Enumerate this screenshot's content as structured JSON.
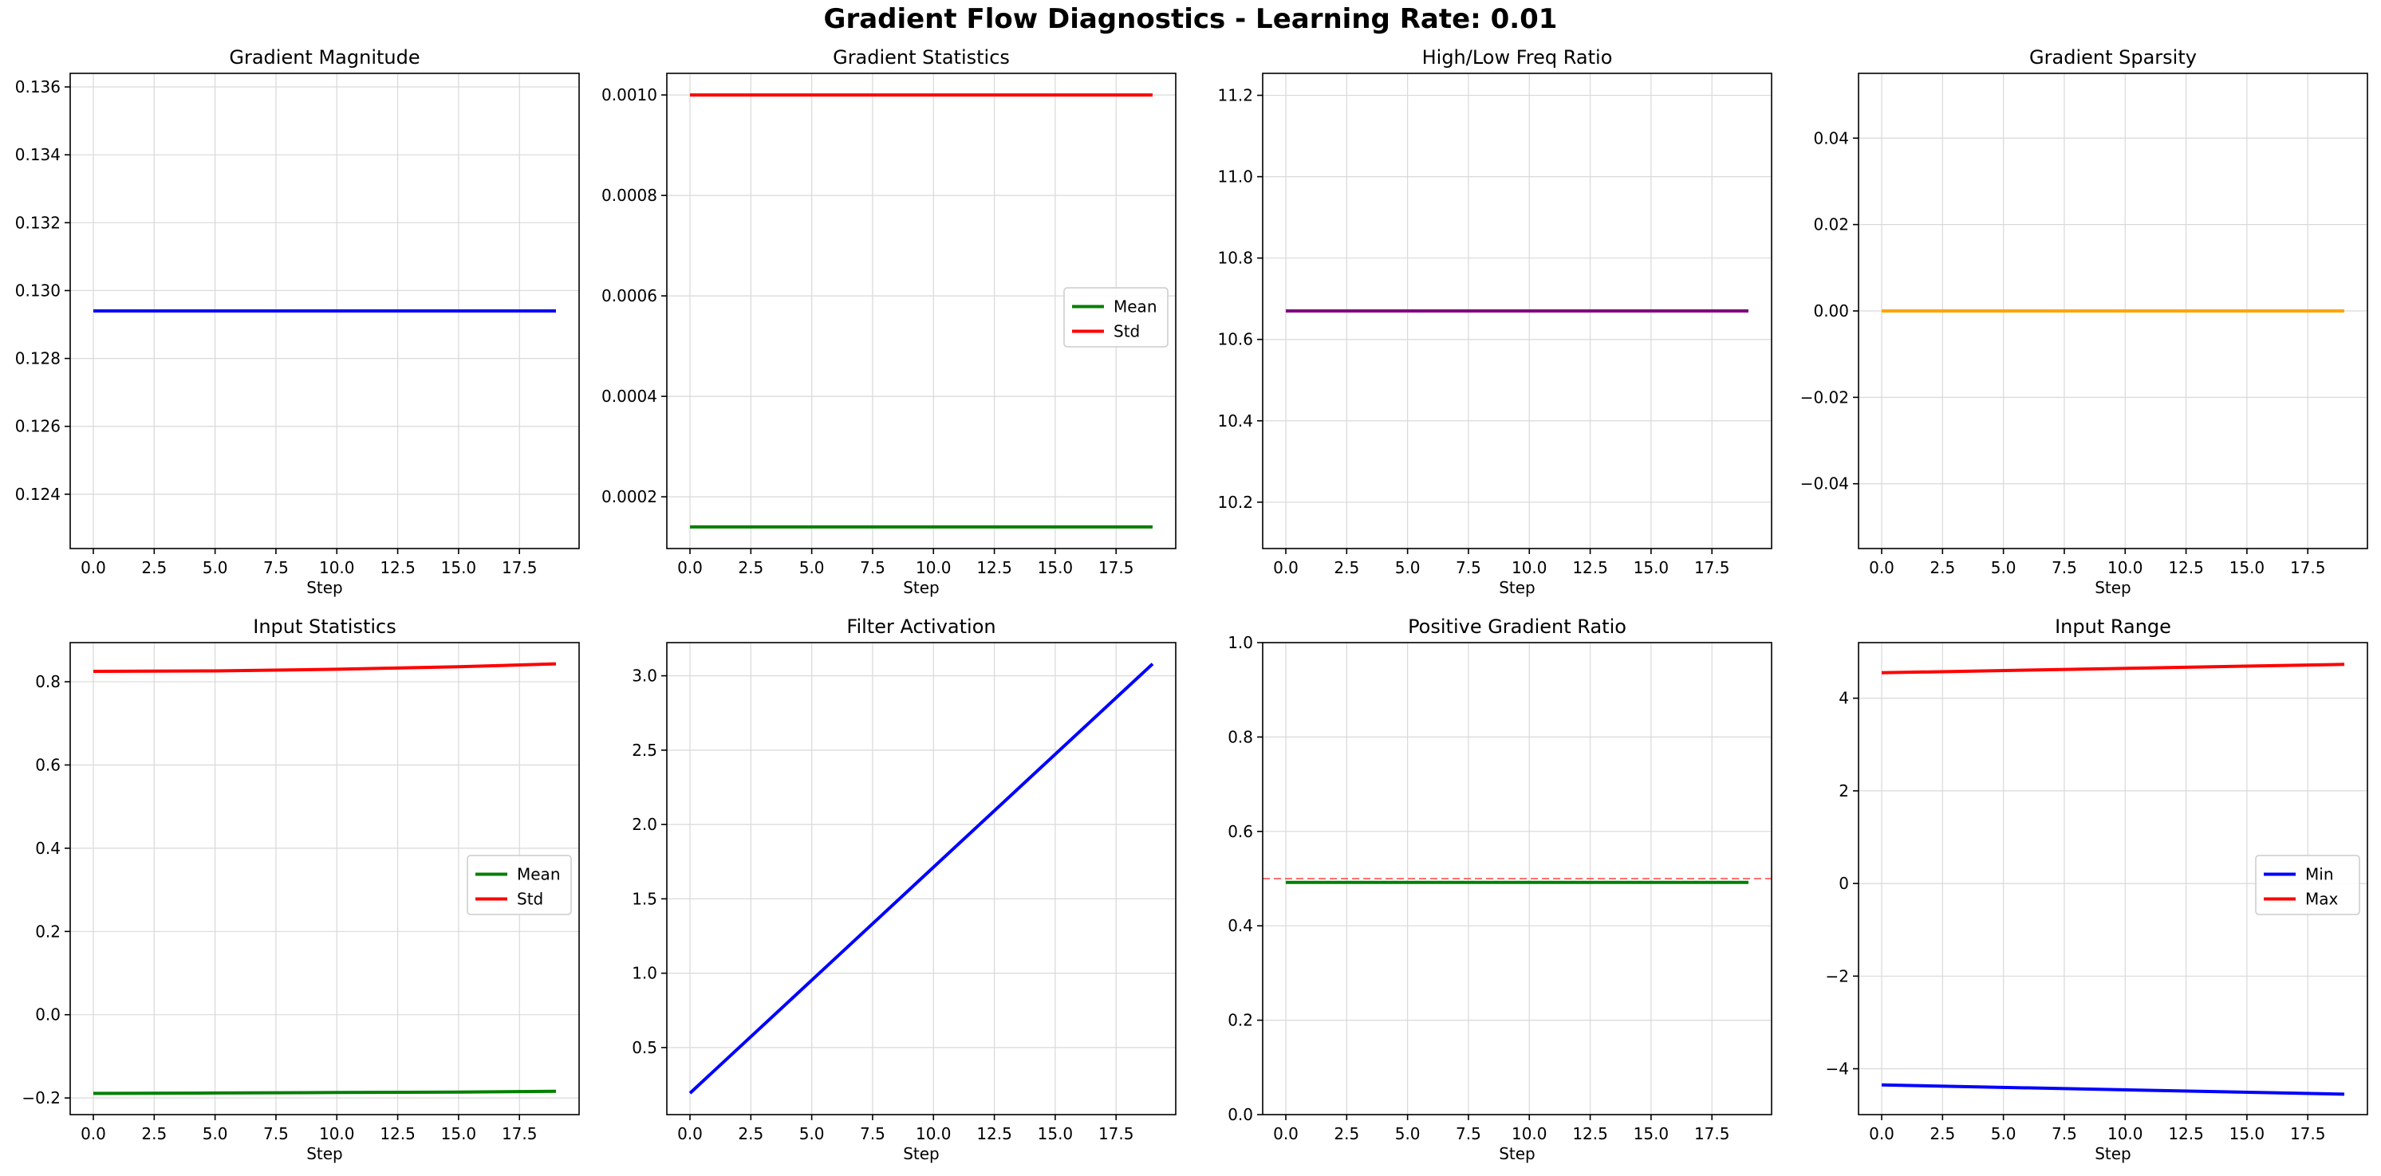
{
  "suptitle": "Gradient Flow Diagnostics - Learning Rate: 0.01",
  "chart_data": [
    {
      "type": "line",
      "title": "Gradient Magnitude",
      "xlabel": "Step",
      "ylabel": "",
      "xlim": [
        -0.95,
        19.95
      ],
      "ylim": [
        0.1224,
        0.1364
      ],
      "xticks": [
        0.0,
        2.5,
        5.0,
        7.5,
        10.0,
        12.5,
        15.0,
        17.5
      ],
      "xtick_labels": [
        "0.0",
        "2.5",
        "5.0",
        "7.5",
        "10.0",
        "12.5",
        "15.0",
        "17.5"
      ],
      "yticks": [
        0.124,
        0.126,
        0.128,
        0.13,
        0.132,
        0.134,
        0.136
      ],
      "ytick_labels": [
        "0.124",
        "0.126",
        "0.128",
        "0.130",
        "0.132",
        "0.134",
        "0.136"
      ],
      "grid": true,
      "legend": null,
      "series": [
        {
          "color": "#0000ff",
          "x": [
            0,
            19
          ],
          "y": [
            0.1294,
            0.1294
          ]
        }
      ]
    },
    {
      "type": "line",
      "title": "Gradient Statistics",
      "xlabel": "Step",
      "ylabel": "",
      "xlim": [
        -0.95,
        19.95
      ],
      "ylim": [
        9.7e-05,
        0.001043
      ],
      "xticks": [
        0.0,
        2.5,
        5.0,
        7.5,
        10.0,
        12.5,
        15.0,
        17.5
      ],
      "xtick_labels": [
        "0.0",
        "2.5",
        "5.0",
        "7.5",
        "10.0",
        "12.5",
        "15.0",
        "17.5"
      ],
      "yticks": [
        0.0002,
        0.0004,
        0.0006,
        0.0008,
        0.001
      ],
      "ytick_labels": [
        "0.0002",
        "0.0004",
        "0.0006",
        "0.0008",
        "0.0010"
      ],
      "grid": true,
      "legend": "center-right",
      "series": [
        {
          "name": "Mean",
          "color": "#008000",
          "x": [
            0,
            19
          ],
          "y": [
            0.00014,
            0.00014
          ]
        },
        {
          "name": "Std",
          "color": "#ff0000",
          "x": [
            0,
            19
          ],
          "y": [
            0.001,
            0.001
          ]
        }
      ]
    },
    {
      "type": "line",
      "title": "High/Low Freq Ratio",
      "xlabel": "Step",
      "ylabel": "",
      "xlim": [
        -0.95,
        19.95
      ],
      "ylim": [
        10.086,
        11.254
      ],
      "xticks": [
        0.0,
        2.5,
        5.0,
        7.5,
        10.0,
        12.5,
        15.0,
        17.5
      ],
      "xtick_labels": [
        "0.0",
        "2.5",
        "5.0",
        "7.5",
        "10.0",
        "12.5",
        "15.0",
        "17.5"
      ],
      "yticks": [
        10.2,
        10.4,
        10.6,
        10.8,
        11.0,
        11.2
      ],
      "ytick_labels": [
        "10.2",
        "10.4",
        "10.6",
        "10.8",
        "11.0",
        "11.2"
      ],
      "grid": true,
      "legend": null,
      "series": [
        {
          "color": "#800080",
          "x": [
            0,
            19
          ],
          "y": [
            10.67,
            10.67
          ]
        }
      ]
    },
    {
      "type": "line",
      "title": "Gradient Sparsity",
      "xlabel": "Step",
      "ylabel": "",
      "xlim": [
        -0.95,
        19.95
      ],
      "ylim": [
        -0.055,
        0.055
      ],
      "xticks": [
        0.0,
        2.5,
        5.0,
        7.5,
        10.0,
        12.5,
        15.0,
        17.5
      ],
      "xtick_labels": [
        "0.0",
        "2.5",
        "5.0",
        "7.5",
        "10.0",
        "12.5",
        "15.0",
        "17.5"
      ],
      "yticks": [
        -0.04,
        -0.02,
        0.0,
        0.02,
        0.04
      ],
      "ytick_labels": [
        "−0.04",
        "−0.02",
        "0.00",
        "0.02",
        "0.04"
      ],
      "grid": true,
      "legend": null,
      "series": [
        {
          "color": "#ffa500",
          "x": [
            0,
            19
          ],
          "y": [
            0.0,
            0.0
          ]
        }
      ]
    },
    {
      "type": "line",
      "title": "Input Statistics",
      "xlabel": "Step",
      "ylabel": "",
      "xlim": [
        -0.95,
        19.95
      ],
      "ylim": [
        -0.24,
        0.894
      ],
      "xticks": [
        0.0,
        2.5,
        5.0,
        7.5,
        10.0,
        12.5,
        15.0,
        17.5
      ],
      "xtick_labels": [
        "0.0",
        "2.5",
        "5.0",
        "7.5",
        "10.0",
        "12.5",
        "15.0",
        "17.5"
      ],
      "yticks": [
        -0.2,
        0.0,
        0.2,
        0.4,
        0.6,
        0.8
      ],
      "ytick_labels": [
        "−0.2",
        "0.0",
        "0.2",
        "0.4",
        "0.6",
        "0.8"
      ],
      "grid": true,
      "legend": "center-right",
      "series": [
        {
          "name": "Mean",
          "color": "#008000",
          "x": [
            0,
            5,
            10,
            15,
            19
          ],
          "y": [
            -0.189,
            -0.188,
            -0.187,
            -0.186,
            -0.184
          ]
        },
        {
          "name": "Std",
          "color": "#ff0000",
          "x": [
            0,
            5,
            10,
            15,
            19
          ],
          "y": [
            0.825,
            0.826,
            0.83,
            0.836,
            0.843
          ]
        }
      ]
    },
    {
      "type": "line",
      "title": "Filter Activation",
      "xlabel": "Step",
      "ylabel": "",
      "xlim": [
        -0.95,
        19.95
      ],
      "ylim": [
        0.049,
        3.223
      ],
      "xticks": [
        0.0,
        2.5,
        5.0,
        7.5,
        10.0,
        12.5,
        15.0,
        17.5
      ],
      "xtick_labels": [
        "0.0",
        "2.5",
        "5.0",
        "7.5",
        "10.0",
        "12.5",
        "15.0",
        "17.5"
      ],
      "yticks": [
        0.5,
        1.0,
        1.5,
        2.0,
        2.5,
        3.0
      ],
      "ytick_labels": [
        "0.5",
        "1.0",
        "1.5",
        "2.0",
        "2.5",
        "3.0"
      ],
      "grid": true,
      "legend": null,
      "series": [
        {
          "color": "#0000ff",
          "x": [
            0,
            19
          ],
          "y": [
            0.193,
            3.08
          ]
        }
      ]
    },
    {
      "type": "line",
      "title": "Positive Gradient Ratio",
      "xlabel": "Step",
      "ylabel": "",
      "xlim": [
        -0.95,
        19.95
      ],
      "ylim": [
        0.0,
        1.0
      ],
      "xticks": [
        0.0,
        2.5,
        5.0,
        7.5,
        10.0,
        12.5,
        15.0,
        17.5
      ],
      "xtick_labels": [
        "0.0",
        "2.5",
        "5.0",
        "7.5",
        "10.0",
        "12.5",
        "15.0",
        "17.5"
      ],
      "yticks": [
        0.0,
        0.2,
        0.4,
        0.6,
        0.8,
        1.0
      ],
      "ytick_labels": [
        "0.0",
        "0.2",
        "0.4",
        "0.6",
        "0.8",
        "1.0"
      ],
      "grid": true,
      "legend": null,
      "reference_line": {
        "y": 0.5,
        "color": "#ff0000",
        "style": "dashed"
      },
      "series": [
        {
          "color": "#008000",
          "x": [
            0,
            19
          ],
          "y": [
            0.492,
            0.492
          ]
        }
      ]
    },
    {
      "type": "line",
      "title": "Input Range",
      "xlabel": "Step",
      "ylabel": "",
      "xlim": [
        -0.95,
        19.95
      ],
      "ylim": [
        -4.99,
        5.2
      ],
      "xticks": [
        0.0,
        2.5,
        5.0,
        7.5,
        10.0,
        12.5,
        15.0,
        17.5
      ],
      "xtick_labels": [
        "0.0",
        "2.5",
        "5.0",
        "7.5",
        "10.0",
        "12.5",
        "15.0",
        "17.5"
      ],
      "yticks": [
        -4,
        -2,
        0,
        2,
        4
      ],
      "ytick_labels": [
        "−4",
        "−2",
        "0",
        "2",
        "4"
      ],
      "grid": true,
      "legend": "center-right",
      "series": [
        {
          "name": "Min",
          "color": "#0000ff",
          "x": [
            0,
            19
          ],
          "y": [
            -4.35,
            -4.55
          ]
        },
        {
          "name": "Max",
          "color": "#ff0000",
          "x": [
            0,
            19
          ],
          "y": [
            4.55,
            4.73
          ]
        }
      ]
    }
  ]
}
